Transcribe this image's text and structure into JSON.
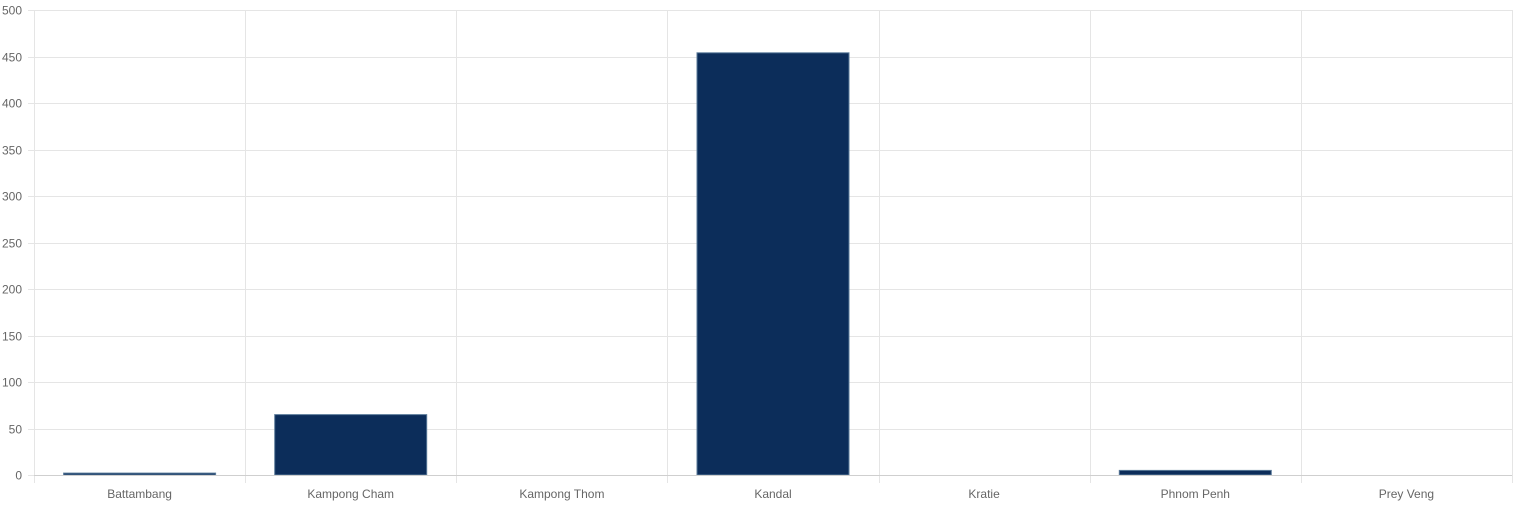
{
  "chart_data": {
    "type": "bar",
    "categories": [
      "Battambang",
      "Kampong Cham",
      "Kampong Thom",
      "Kandal",
      "Kratie",
      "Phnom Penh",
      "Prey Veng"
    ],
    "series": [
      {
        "values": [
          2,
          65,
          0,
          454,
          0,
          5,
          0
        ]
      }
    ],
    "title": "",
    "xlabel": "",
    "ylabel": "",
    "ylim": [
      0,
      500
    ],
    "yticks": [
      0,
      50,
      100,
      150,
      200,
      250,
      300,
      350,
      400,
      450,
      500
    ],
    "grid": true,
    "legend": "none",
    "colors": {
      "bar": "#0c2d5a",
      "bar_border": "#5a7a99",
      "grid": "#e5e5e5",
      "tick_text": "#666666"
    }
  }
}
